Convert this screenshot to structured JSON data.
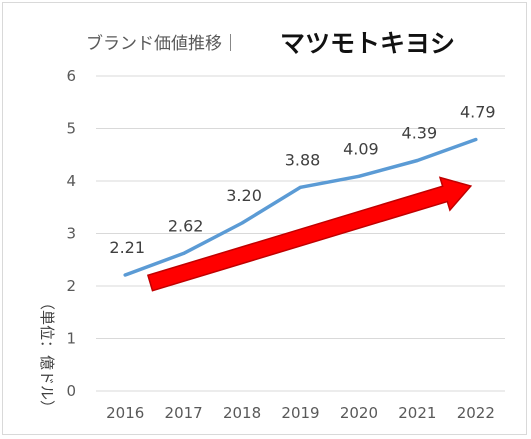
{
  "title": "ブランド価値推移｜",
  "logo_text": "マツモトキヨシ",
  "colors": {
    "line": "#5b9bd5",
    "arrow": "#ff0000",
    "arrow_outline": "#c00000",
    "grid": "#d9d9d9",
    "text": "#595959"
  },
  "chart_data": {
    "type": "line",
    "title": "ブランド価値推移｜",
    "categories": [
      "2016",
      "2017",
      "2018",
      "2019",
      "2020",
      "2021",
      "2022"
    ],
    "values": [
      2.21,
      2.62,
      3.2,
      3.88,
      4.09,
      4.39,
      4.79
    ],
    "data_labels": [
      "2.21",
      "2.62",
      "3.20",
      "3.88",
      "4.09",
      "4.39",
      "4.79"
    ],
    "y_ticks": [
      "0",
      "1",
      "2",
      "3",
      "4",
      "5",
      "6"
    ],
    "ylim": [
      0,
      6
    ],
    "ylabel": "（単位：億ドル）",
    "grid": true,
    "legend": "none",
    "annotation": "red upward trend arrow"
  }
}
